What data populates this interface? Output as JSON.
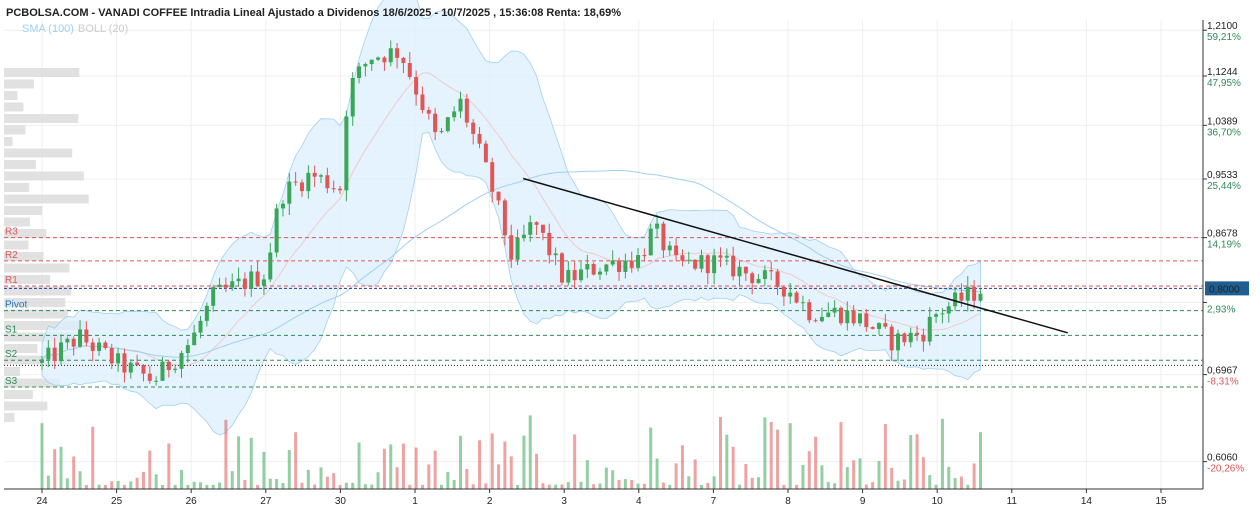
{
  "header": {
    "title": "PCBOLSA.COM - VANADI COFFEE Intradia Lineal Ajustado a Dividenos 18/6/2025 - 10/7/2025 , 15:36:08 Renta: 18,69%",
    "legend_sma": "SMA (100)",
    "legend_boll": "BOLL (20)"
  },
  "colors": {
    "up": "#3aa757",
    "down": "#e05656",
    "band_fill": "#dcefff",
    "band_line": "#9fd0f0",
    "sma_line": "#9fd0f0",
    "level_red": "#e05656",
    "level_green": "#2e8b57",
    "pivot_blue": "#1f77b4",
    "price_box": "#1f5e91",
    "pct_green": "#2e8b57",
    "pct_red": "#e05656"
  },
  "chart_data": {
    "type": "candlestick",
    "title": "PCBOLSA.COM - VANADI COFFEE Intradia Lineal Ajustado a Dividenos 18/6/2025 - 10/7/2025 , 15:36:08 Renta: 18,69%",
    "ylim": [
      0.58,
      1.23
    ],
    "yaxis_log": true,
    "y_ticks": [
      {
        "value": 1.21,
        "label": "1,2100",
        "pct": "59,21%"
      },
      {
        "value": 1.1244,
        "label": "1,1244",
        "pct": "47,95%"
      },
      {
        "value": 1.0389,
        "label": "1,0389",
        "pct": "36,70%"
      },
      {
        "value": 0.9533,
        "label": "0,9533",
        "pct": "25,44%"
      },
      {
        "value": 0.8678,
        "label": "0,8678",
        "pct": "14,19%"
      },
      {
        "value": 0.7822,
        "label": "",
        "pct": "2,93%"
      },
      {
        "value": 0.6967,
        "label": "0,6967",
        "pct": "-8,31%"
      },
      {
        "value": 0.606,
        "label": "0,6060",
        "pct": "-20,26%"
      }
    ],
    "x_ticks": [
      "24",
      "25",
      "26",
      "27",
      "30",
      "1",
      "2",
      "3",
      "4",
      "7",
      "8",
      "9",
      "10",
      "11",
      "14",
      "15"
    ],
    "x_tick_days": [
      0,
      1,
      2,
      3,
      4,
      5,
      6,
      7,
      8,
      9,
      10,
      11,
      12,
      13,
      14,
      15
    ],
    "last_price": {
      "value": 0.8,
      "label": "0,8000"
    },
    "reference_price": 0.76,
    "levels": [
      {
        "name": "R3",
        "value": 0.8678,
        "kind": "resistance"
      },
      {
        "name": "R2",
        "value": 0.836,
        "kind": "resistance"
      },
      {
        "name": "R1",
        "value": 0.803,
        "kind": "resistance"
      },
      {
        "name": "Pivot",
        "value": 0.772,
        "kind": "pivot"
      },
      {
        "name": "S1",
        "value": 0.742,
        "kind": "support"
      },
      {
        "name": "S2",
        "value": 0.713,
        "kind": "support"
      },
      {
        "name": "S3",
        "value": 0.683,
        "kind": "support"
      }
    ],
    "trendline": {
      "start": {
        "day": 6.45,
        "price": 0.954
      },
      "end": {
        "day": 13.75,
        "price": 0.745
      }
    },
    "bollinger_end_day": 12.75,
    "daily_closes": [
      {
        "day": 0,
        "close": 0.71
      },
      {
        "day": 0.5,
        "close": 0.74
      },
      {
        "day": 1,
        "close": 0.71
      },
      {
        "day": 1.5,
        "close": 0.69
      },
      {
        "day": 2,
        "close": 0.735
      },
      {
        "day": 2.3,
        "close": 0.79
      },
      {
        "day": 3,
        "close": 0.82
      },
      {
        "day": 3.2,
        "close": 0.93
      },
      {
        "day": 3.6,
        "close": 0.96
      },
      {
        "day": 4,
        "close": 0.94
      },
      {
        "day": 4.1,
        "close": 1.1
      },
      {
        "day": 4.4,
        "close": 1.16
      },
      {
        "day": 4.8,
        "close": 1.17
      },
      {
        "day": 5.3,
        "close": 1.01
      },
      {
        "day": 5.6,
        "close": 1.08
      },
      {
        "day": 6,
        "close": 0.95
      },
      {
        "day": 6.3,
        "close": 0.84
      },
      {
        "day": 6.6,
        "close": 0.89
      },
      {
        "day": 7,
        "close": 0.81
      },
      {
        "day": 7.5,
        "close": 0.83
      },
      {
        "day": 8,
        "close": 0.84
      },
      {
        "day": 8.2,
        "close": 0.88
      },
      {
        "day": 8.5,
        "close": 0.83
      },
      {
        "day": 9,
        "close": 0.835
      },
      {
        "day": 9.6,
        "close": 0.815
      },
      {
        "day": 10,
        "close": 0.8
      },
      {
        "day": 10.3,
        "close": 0.77
      },
      {
        "day": 10.7,
        "close": 0.77
      },
      {
        "day": 11,
        "close": 0.76
      },
      {
        "day": 11.4,
        "close": 0.735
      },
      {
        "day": 11.8,
        "close": 0.745
      },
      {
        "day": 12,
        "close": 0.77
      },
      {
        "day": 12.4,
        "close": 0.79
      },
      {
        "day": 12.6,
        "close": 0.8
      }
    ]
  }
}
